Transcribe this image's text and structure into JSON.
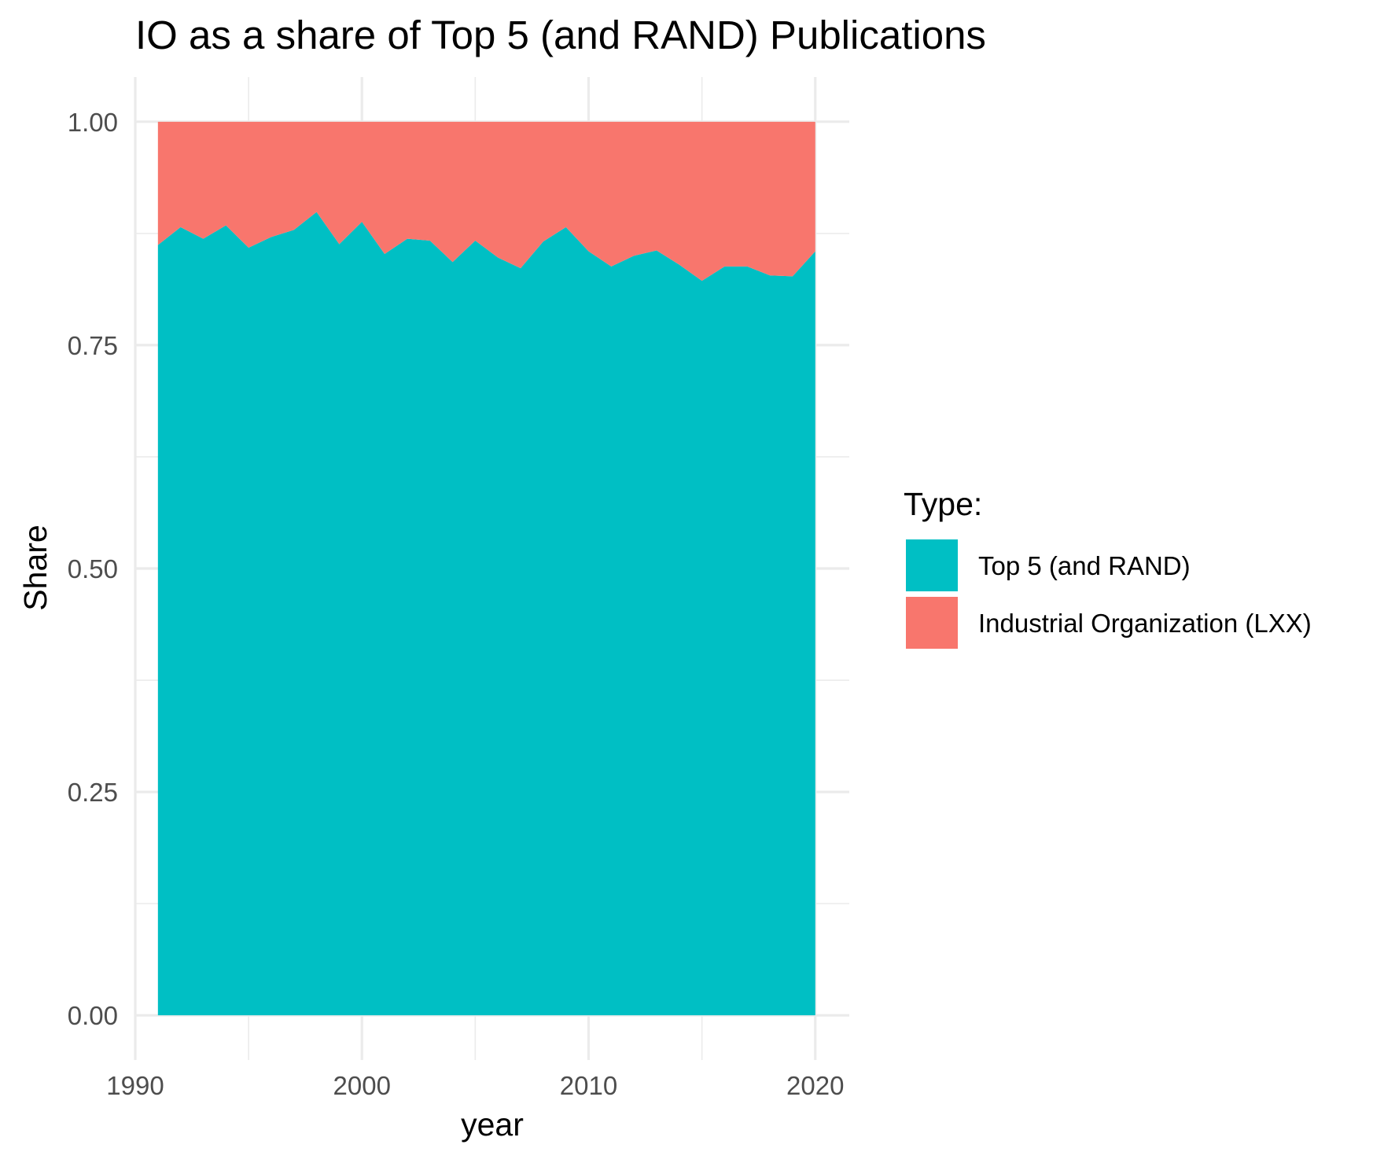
{
  "chart_data": {
    "type": "area",
    "title": "IO as a share of Top 5 (and RAND) Publications",
    "xlabel": "year",
    "ylabel": "Share",
    "xlim": [
      1990,
      2021.5
    ],
    "ylim": [
      -0.05,
      1.05
    ],
    "x_ticks": [
      1990,
      2000,
      2010,
      2020
    ],
    "y_ticks": [
      0.0,
      0.25,
      0.5,
      0.75,
      1.0
    ],
    "y_tick_labels": [
      "0.00",
      "0.25",
      "0.50",
      "0.75",
      "1.00"
    ],
    "grid": true,
    "stacked": true,
    "legend": {
      "title": "Type:",
      "position": "right"
    },
    "x": [
      1991,
      1992,
      1993,
      1994,
      1995,
      1996,
      1997,
      1998,
      1999,
      2000,
      2001,
      2002,
      2003,
      2004,
      2005,
      2006,
      2007,
      2008,
      2009,
      2010,
      2011,
      2012,
      2013,
      2014,
      2015,
      2016,
      2017,
      2018,
      2019,
      2020
    ],
    "series": [
      {
        "name": "Top 5 (and RAND)",
        "color": "#00BFC4",
        "values": [
          0.862,
          0.882,
          0.869,
          0.884,
          0.859,
          0.871,
          0.879,
          0.899,
          0.863,
          0.888,
          0.852,
          0.869,
          0.867,
          0.843,
          0.867,
          0.848,
          0.836,
          0.866,
          0.882,
          0.855,
          0.838,
          0.85,
          0.856,
          0.84,
          0.822,
          0.838,
          0.838,
          0.828,
          0.827,
          0.855
        ]
      },
      {
        "name": "Industrial Organization (LXX)",
        "color": "#F8766D",
        "values": [
          0.138,
          0.118,
          0.131,
          0.116,
          0.141,
          0.129,
          0.121,
          0.101,
          0.137,
          0.112,
          0.148,
          0.131,
          0.133,
          0.157,
          0.133,
          0.152,
          0.164,
          0.134,
          0.118,
          0.145,
          0.162,
          0.15,
          0.144,
          0.16,
          0.178,
          0.162,
          0.162,
          0.172,
          0.173,
          0.145
        ]
      }
    ]
  }
}
